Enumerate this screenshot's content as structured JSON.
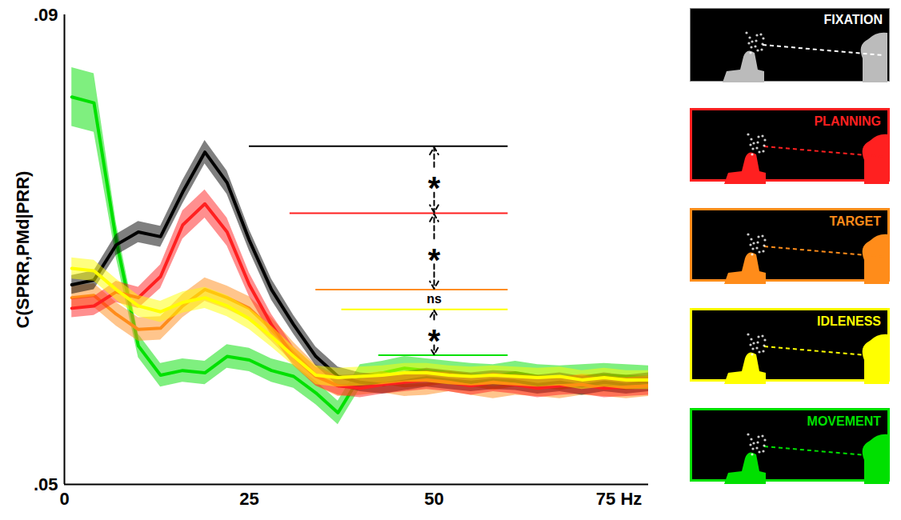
{
  "chart_data": {
    "type": "line",
    "y_label": "C(SPRR,PMd|PRR)",
    "xlim": [
      0,
      79
    ],
    "xticks": [
      0,
      25,
      50,
      {
        "value": 75,
        "label": "75 Hz"
      }
    ],
    "ylim": [
      0.05,
      0.09
    ],
    "yticks": [
      {
        "value": 0.05,
        "label": ".05"
      },
      {
        "value": 0.09,
        "label": ".09"
      }
    ],
    "legend": "right",
    "x": [
      1,
      4,
      7,
      10,
      13,
      16,
      19,
      22,
      25,
      28,
      31,
      34,
      37,
      40,
      43,
      46,
      49,
      52,
      55,
      58,
      61,
      64,
      67,
      70,
      73,
      76,
      79
    ],
    "series": [
      {
        "name": "FIXATION",
        "color": "#000000",
        "values": [
          0.067,
          0.0674,
          0.0704,
          0.0715,
          0.0711,
          0.0749,
          0.0783,
          0.0757,
          0.0708,
          0.0666,
          0.0636,
          0.0609,
          0.0592,
          0.0587,
          0.0585,
          0.0588,
          0.0591,
          0.0589,
          0.0587,
          0.0589,
          0.0588,
          0.0585,
          0.0587,
          0.0584,
          0.0587,
          0.0585,
          0.0587
        ],
        "error": [
          0.0008,
          0.0008,
          0.0009,
          0.0009,
          0.0009,
          0.001,
          0.001,
          0.001,
          0.0009,
          0.0009,
          0.0008,
          0.0008,
          0.0008,
          0.0008,
          0.0008,
          0.0008,
          0.0008,
          0.0008,
          0.0008,
          0.0008,
          0.0008,
          0.0008,
          0.0008,
          0.0008,
          0.0008,
          0.0008,
          0.0008
        ],
        "level": 0.0788,
        "level_x": [
          25,
          60
        ]
      },
      {
        "name": "PLANNING",
        "color": "#ff2020",
        "values": [
          0.065,
          0.0652,
          0.0664,
          0.0659,
          0.0677,
          0.0721,
          0.0739,
          0.0715,
          0.067,
          0.0636,
          0.0609,
          0.0592,
          0.0584,
          0.0582,
          0.0585,
          0.0587,
          0.0589,
          0.0587,
          0.0584,
          0.0587,
          0.0585,
          0.0582,
          0.0584,
          0.0585,
          0.0582,
          0.0583,
          0.0584
        ],
        "error": [
          0.0008,
          0.0008,
          0.0009,
          0.0009,
          0.001,
          0.0012,
          0.0012,
          0.0012,
          0.001,
          0.0009,
          0.0008,
          0.0008,
          0.0008,
          0.0008,
          0.0008,
          0.0008,
          0.0008,
          0.0008,
          0.0008,
          0.0008,
          0.0008,
          0.0008,
          0.0008,
          0.0008,
          0.0008,
          0.0008,
          0.0008
        ],
        "level": 0.0731,
        "level_x": [
          30.5,
          60
        ]
      },
      {
        "name": "TARGET",
        "color": "#ff8c1a",
        "values": [
          0.0659,
          0.0661,
          0.0645,
          0.0632,
          0.0633,
          0.0652,
          0.0666,
          0.0659,
          0.065,
          0.0632,
          0.0612,
          0.0593,
          0.0584,
          0.0585,
          0.0587,
          0.0584,
          0.0585,
          0.0588,
          0.0585,
          0.0582,
          0.0585,
          0.0584,
          0.0582,
          0.0585,
          0.0584,
          0.0582,
          0.0584
        ],
        "error": [
          0.001,
          0.001,
          0.001,
          0.001,
          0.001,
          0.001,
          0.001,
          0.001,
          0.001,
          0.001,
          0.0009,
          0.0009,
          0.0009,
          0.0009,
          0.0009,
          0.0009,
          0.0009,
          0.0009,
          0.0009,
          0.0009,
          0.0009,
          0.0009,
          0.0009,
          0.0009,
          0.0009,
          0.0009,
          0.0009
        ],
        "level": 0.0666,
        "level_x": [
          34,
          60
        ]
      },
      {
        "name": "IDLENESS",
        "color": "#ffff00",
        "values": [
          0.0684,
          0.0682,
          0.0666,
          0.0652,
          0.0647,
          0.0655,
          0.0659,
          0.0652,
          0.0641,
          0.0626,
          0.0609,
          0.0593,
          0.0591,
          0.0592,
          0.0593,
          0.0595,
          0.0595,
          0.0593,
          0.0592,
          0.0593,
          0.0592,
          0.0591,
          0.0592,
          0.0589,
          0.0591,
          0.0589,
          0.0589
        ],
        "error": [
          0.0009,
          0.0009,
          0.0009,
          0.0009,
          0.0009,
          0.0009,
          0.0009,
          0.0009,
          0.0009,
          0.0009,
          0.0008,
          0.0008,
          0.0008,
          0.0008,
          0.0008,
          0.0008,
          0.0008,
          0.0008,
          0.0008,
          0.0008,
          0.0008,
          0.0008,
          0.0008,
          0.0008,
          0.0008,
          0.0008,
          0.0008
        ],
        "level": 0.0649,
        "level_x": [
          37.5,
          60
        ]
      },
      {
        "name": "MOVEMENT",
        "color": "#00e000",
        "values": [
          0.083,
          0.0825,
          0.0708,
          0.0618,
          0.0593,
          0.0597,
          0.0595,
          0.0609,
          0.0606,
          0.0597,
          0.0592,
          0.0578,
          0.0561,
          0.0592,
          0.0595,
          0.0599,
          0.0597,
          0.0595,
          0.0593,
          0.0592,
          0.0595,
          0.0592,
          0.0591,
          0.0592,
          0.0593,
          0.0592,
          0.0591
        ],
        "error": [
          0.0025,
          0.0025,
          0.0015,
          0.001,
          0.001,
          0.001,
          0.001,
          0.001,
          0.001,
          0.001,
          0.001,
          0.001,
          0.001,
          0.001,
          0.001,
          0.001,
          0.001,
          0.001,
          0.001,
          0.001,
          0.001,
          0.001,
          0.001,
          0.001,
          0.001,
          0.001,
          0.001
        ],
        "level": 0.061,
        "level_x": [
          42.5,
          60
        ]
      }
    ],
    "comparisons": {
      "x": 50,
      "pairs": [
        {
          "from": "FIXATION",
          "to": "PLANNING",
          "label": "*"
        },
        {
          "from": "PLANNING",
          "to": "TARGET",
          "label": "*"
        },
        {
          "from": "TARGET",
          "to": "IDLENESS",
          "label": "ns"
        },
        {
          "from": "IDLENESS",
          "to": "MOVEMENT",
          "label": "*"
        }
      ]
    }
  }
}
